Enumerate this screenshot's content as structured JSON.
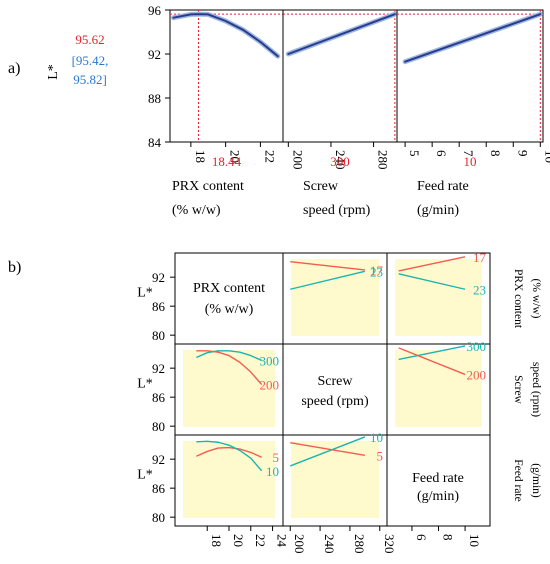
{
  "chart_data": [
    {
      "type": "line",
      "panel_label": "a)",
      "ylabel": "L*",
      "ylim": [
        84,
        96
      ],
      "yticks": [
        84,
        88,
        92,
        96
      ],
      "optimum": {
        "value": "95.62",
        "ci": [
          "[95.42,",
          "95.82]"
        ]
      },
      "subplots": [
        {
          "factor_label": [
            "PRX content",
            "(% w/w)"
          ],
          "optimal_x_label": "18.44",
          "optimal_x": 18.44,
          "xlim": [
            16.8,
            23.3
          ],
          "xticks": [
            18,
            20,
            22
          ],
          "x": [
            17,
            18,
            18.44,
            19,
            20,
            21,
            22,
            23
          ],
          "y": [
            95.3,
            95.6,
            95.62,
            95.6,
            95.0,
            94.2,
            93.1,
            91.8
          ]
        },
        {
          "factor_label": [
            "Screw",
            "speed (rpm)"
          ],
          "optimal_x_label": "300",
          "optimal_x": 300,
          "xlim": [
            195,
            302
          ],
          "xticks": [
            200,
            240,
            280
          ],
          "x": [
            200,
            300
          ],
          "y": [
            92.0,
            95.62
          ]
        },
        {
          "factor_label": [
            "Feed rate",
            "(g/min)"
          ],
          "optimal_x_label": "10",
          "optimal_x": 10,
          "xlim": [
            4.7,
            10.1
          ],
          "xticks": [
            5,
            6,
            7,
            8,
            9,
            10
          ],
          "x": [
            5,
            10
          ],
          "y": [
            91.3,
            95.62
          ]
        }
      ]
    },
    {
      "type": "line",
      "panel_label": "b)",
      "ylabel": "L*",
      "ylim": [
        79,
        97
      ],
      "yticks": [
        80,
        86,
        92
      ],
      "x_axes": [
        {
          "xlim": [
            15.5,
            24.5
          ],
          "xticks": [
            18,
            20,
            22,
            24
          ],
          "tick_labels": [
            "18",
            "20",
            "22",
            "24"
          ]
        },
        {
          "xlim": [
            197,
            323
          ],
          "xticks": [
            200,
            240,
            280,
            320
          ],
          "tick_labels": [
            "200",
            "240",
            "280",
            "320"
          ]
        },
        {
          "xlim": [
            4.5,
            11.5
          ],
          "xticks": [
            6,
            8,
            10
          ],
          "tick_labels": [
            "6",
            "8",
            "10"
          ]
        }
      ],
      "diagonal_labels": [
        [
          "PRX content",
          "(% w/w)"
        ],
        [
          "Screw",
          "speed (rpm)"
        ],
        [
          "Feed rate",
          "(g/min)"
        ]
      ],
      "side_labels": [
        [
          "PRX content",
          "(% w/w)"
        ],
        [
          "Screw",
          "speed (rpm)"
        ],
        [
          "Feed rate",
          "(g/min)"
        ]
      ],
      "cells": [
        {
          "row": 0,
          "col": 1,
          "series": [
            {
              "name": "17",
              "color": "#f25c54",
              "x": [
                200,
                300
              ],
              "y": [
                95.2,
                93.5
              ]
            },
            {
              "name": "23",
              "color": "#1ab5b0",
              "x": [
                200,
                300
              ],
              "y": [
                89.5,
                93.2
              ]
            }
          ]
        },
        {
          "row": 0,
          "col": 2,
          "series": [
            {
              "name": "17",
              "color": "#f25c54",
              "x": [
                5,
                10
              ],
              "y": [
                93.3,
                96.2
              ]
            },
            {
              "name": "23",
              "color": "#1ab5b0",
              "x": [
                5,
                10
              ],
              "y": [
                92.7,
                89.5
              ]
            }
          ]
        },
        {
          "row": 1,
          "col": 0,
          "series": [
            {
              "name": "300",
              "color": "#1ab5b0",
              "x": [
                17,
                18,
                19,
                20,
                21,
                22,
                23
              ],
              "y": [
                94.2,
                95.2,
                95.6,
                95.6,
                95.3,
                94.6,
                93.6
              ]
            },
            {
              "name": "200",
              "color": "#f25c54",
              "x": [
                17,
                18,
                19,
                20,
                21,
                22,
                23
              ],
              "y": [
                95.6,
                95.6,
                95.3,
                94.6,
                93.2,
                91.2,
                88.6
              ]
            }
          ]
        },
        {
          "row": 1,
          "col": 2,
          "series": [
            {
              "name": "300",
              "color": "#1ab5b0",
              "x": [
                5,
                10
              ],
              "y": [
                93.8,
                96.6
              ]
            },
            {
              "name": "200",
              "color": "#f25c54",
              "x": [
                5,
                10
              ],
              "y": [
                96.2,
                90.7
              ]
            }
          ]
        },
        {
          "row": 2,
          "col": 0,
          "series": [
            {
              "name": "5",
              "color": "#f25c54",
              "x": [
                17,
                18,
                19,
                20,
                21,
                22,
                23
              ],
              "y": [
                92.6,
                93.6,
                94.3,
                94.4,
                94.1,
                93.4,
                92.4
              ]
            },
            {
              "name": "10",
              "color": "#1ab5b0",
              "x": [
                17,
                18,
                19,
                20,
                21,
                22,
                23
              ],
              "y": [
                95.6,
                95.7,
                95.5,
                94.9,
                93.8,
                92.2,
                89.6
              ]
            }
          ]
        },
        {
          "row": 2,
          "col": 1,
          "series": [
            {
              "name": "10",
              "color": "#1ab5b0",
              "x": [
                200,
                300
              ],
              "y": [
                90.6,
                96.6
              ]
            },
            {
              "name": "5",
              "color": "#f25c54",
              "x": [
                200,
                300
              ],
              "y": [
                95.4,
                92.8
              ]
            }
          ]
        }
      ]
    }
  ],
  "colors": {
    "curve": "#2a3a8c",
    "curve_halo": "#9db8e0",
    "ref_line": "#e8202a",
    "optimum_text": "#e8202a",
    "ci_text": "#2979d4",
    "cell_fill": "#fffacd",
    "teal": "#1ab5b0",
    "red": "#f25c54"
  }
}
